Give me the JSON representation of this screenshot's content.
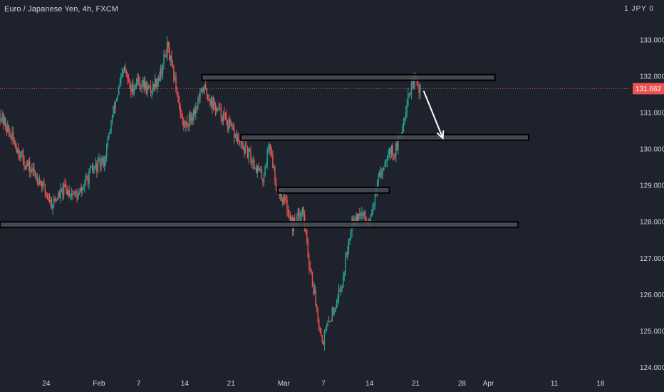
{
  "header": {
    "title": "Euro / Japanese Yen, 4h, FXCM",
    "unit_label": "1 JPY 0"
  },
  "current_price": {
    "label": "131.662",
    "value": 131.662
  },
  "colors": {
    "background": "#1e222d",
    "up": "#26a69a",
    "down": "#ef5350",
    "zone_fill": "#4a4d56",
    "zone_stroke": "#000000",
    "price_line": "#ef5350",
    "arrow": "#ffffff"
  },
  "chart_data": {
    "type": "candlestick",
    "y_ticks": [
      "133.000",
      "132.000",
      "131.000",
      "130.000",
      "129.000",
      "128.000",
      "127.000",
      "126.000",
      "125.000",
      "124.000"
    ],
    "y_tick_values": [
      133,
      132,
      131,
      130,
      129,
      128,
      127,
      126,
      125,
      124
    ],
    "x_ticks": [
      "24",
      "Feb",
      "7",
      "14",
      "21",
      "Mar",
      "7",
      "14",
      "21",
      "28",
      "Apr",
      "11",
      "18"
    ],
    "x_tick_days": [
      -8,
      0,
      6,
      13,
      20,
      28,
      34,
      41,
      48,
      55,
      59,
      69,
      76
    ],
    "x_range_days": [
      -15,
      80
    ],
    "ylim": [
      123.85,
      134.1
    ],
    "key_points": [
      {
        "day": -15,
        "price": 131.0
      },
      {
        "day": -13,
        "price": 130.3
      },
      {
        "day": -11,
        "price": 129.6
      },
      {
        "day": -9,
        "price": 129.2
      },
      {
        "day": -7,
        "price": 128.5
      },
      {
        "day": -5,
        "price": 128.9
      },
      {
        "day": -3,
        "price": 128.7
      },
      {
        "day": -1,
        "price": 129.4
      },
      {
        "day": 1,
        "price": 129.7
      },
      {
        "day": 2.5,
        "price": 131.2
      },
      {
        "day": 4,
        "price": 132.2
      },
      {
        "day": 5,
        "price": 131.6
      },
      {
        "day": 6,
        "price": 131.9
      },
      {
        "day": 8,
        "price": 131.6
      },
      {
        "day": 9.5,
        "price": 132.1
      },
      {
        "day": 10.5,
        "price": 132.8
      },
      {
        "day": 11.5,
        "price": 132.0
      },
      {
        "day": 13,
        "price": 130.6
      },
      {
        "day": 14.5,
        "price": 131.0
      },
      {
        "day": 16,
        "price": 131.7
      },
      {
        "day": 17.5,
        "price": 131.2
      },
      {
        "day": 19,
        "price": 130.9
      },
      {
        "day": 21,
        "price": 130.3
      },
      {
        "day": 23,
        "price": 129.8
      },
      {
        "day": 25,
        "price": 129.2
      },
      {
        "day": 26,
        "price": 130.2
      },
      {
        "day": 27,
        "price": 129.0
      },
      {
        "day": 28.5,
        "price": 128.5
      },
      {
        "day": 29.5,
        "price": 127.9
      },
      {
        "day": 31,
        "price": 128.4
      },
      {
        "day": 32,
        "price": 126.9
      },
      {
        "day": 33,
        "price": 125.8
      },
      {
        "day": 34,
        "price": 124.7
      },
      {
        "day": 35.5,
        "price": 125.5
      },
      {
        "day": 37,
        "price": 126.3
      },
      {
        "day": 38.5,
        "price": 128.1
      },
      {
        "day": 40,
        "price": 128.2
      },
      {
        "day": 41,
        "price": 128.0
      },
      {
        "day": 42.5,
        "price": 129.1
      },
      {
        "day": 44,
        "price": 130.0
      },
      {
        "day": 45,
        "price": 129.9
      },
      {
        "day": 46,
        "price": 130.5
      },
      {
        "day": 47,
        "price": 131.5
      },
      {
        "day": 48,
        "price": 131.9
      },
      {
        "day": 48.8,
        "price": 131.66
      }
    ],
    "zones": [
      {
        "name": "zone-132",
        "start_day": 15.6,
        "end_day": 60.0,
        "top": 132.05,
        "bottom": 131.9
      },
      {
        "name": "zone-130",
        "start_day": 21.5,
        "end_day": 65.1,
        "top": 130.4,
        "bottom": 130.25
      },
      {
        "name": "zone-129",
        "start_day": 27.1,
        "end_day": 44.0,
        "top": 128.95,
        "bottom": 128.8
      },
      {
        "name": "zone-128",
        "start_day": -15.0,
        "end_day": 63.5,
        "top": 128.0,
        "bottom": 127.9
      }
    ],
    "arrow": {
      "from_day": 49.2,
      "from_price": 131.6,
      "to_day": 52.1,
      "to_price": 130.3
    }
  }
}
